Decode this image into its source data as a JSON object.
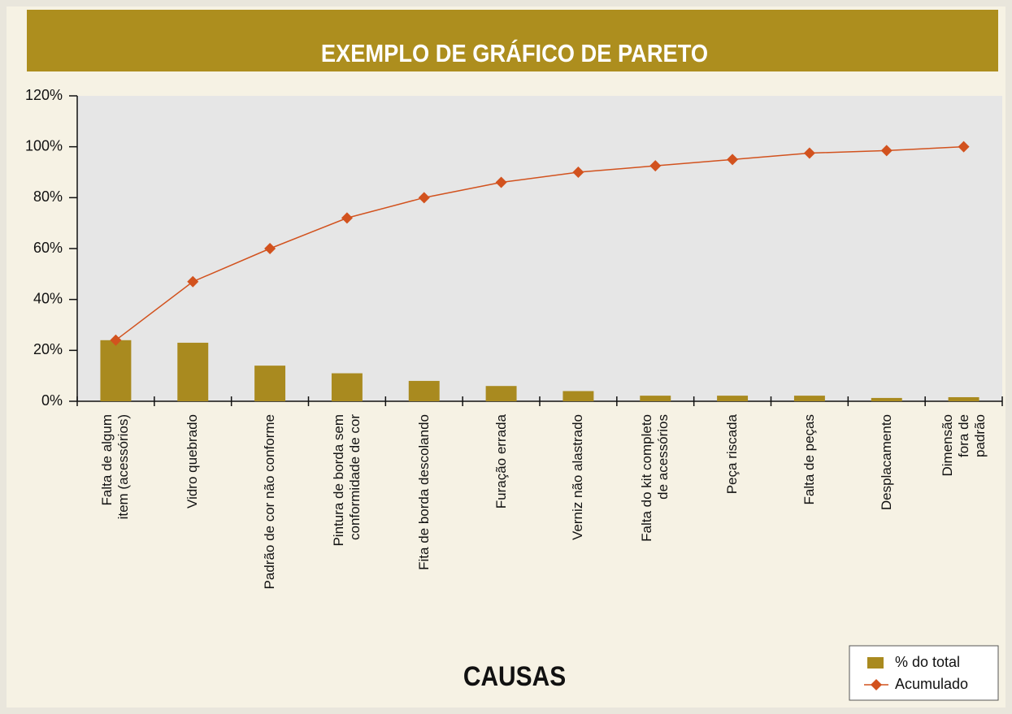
{
  "chart_data": {
    "type": "pareto",
    "title": "EXEMPLO DE GRÁFICO DE PARETO",
    "x_label": "CAUSAS",
    "categories": [
      "Falta de algum\nitem (acessórios)",
      "Vidro quebrado",
      "Padrão de cor não conforme",
      "Pintura de borda sem\nconformidade de cor",
      "Fita de borda descolando",
      "Furação errada",
      "Verniz não alastrado",
      "Falta do kit completo\nde acessórios",
      "Peça riscada",
      "Falta de peças",
      "Desplacamento",
      "Dimensão fora de padrão"
    ],
    "series": [
      {
        "name": "% do total",
        "kind": "bar",
        "color": "#a98a1f",
        "values": [
          24,
          23,
          14,
          11,
          8,
          6,
          4,
          2.2,
          2.2,
          2.2,
          1.3,
          1.6
        ]
      },
      {
        "name": "Acumulado",
        "kind": "line",
        "color": "#d2521e",
        "values": [
          24,
          47,
          60,
          72,
          80,
          86,
          90,
          92.5,
          95,
          97.5,
          98.5,
          100
        ]
      }
    ],
    "ylim": [
      0,
      120
    ],
    "yticks": [
      {
        "value": 0,
        "label": "0%"
      },
      {
        "value": 20,
        "label": "20%"
      },
      {
        "value": 40,
        "label": "40%"
      },
      {
        "value": 60,
        "label": "60%"
      },
      {
        "value": 80,
        "label": "80%"
      },
      {
        "value": 100,
        "label": "100%"
      },
      {
        "value": 120,
        "label": "120%"
      }
    ],
    "legend": "bottom-right"
  }
}
